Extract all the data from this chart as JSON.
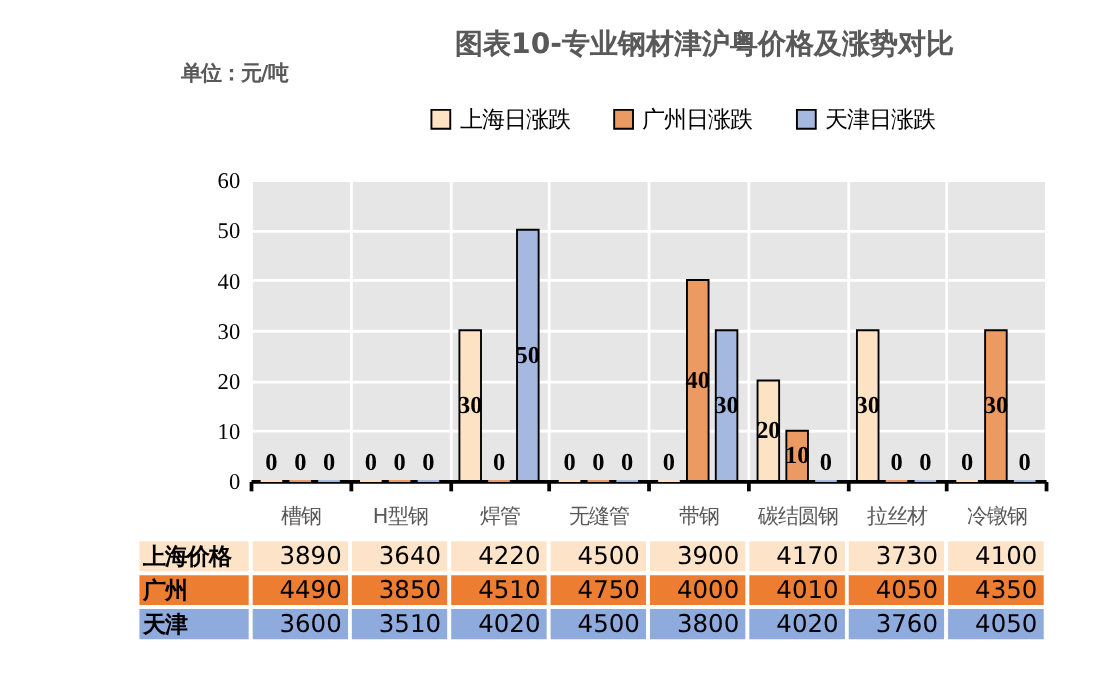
{
  "chart_data": [
    {
      "type": "bar",
      "title": "图表10-专业钢材津沪粤价格及涨势对比",
      "annotations": [
        "单位：元/吨"
      ],
      "categories": [
        "槽钢",
        "H型钢",
        "焊管",
        "无缝管",
        "带钢",
        "碳结圆钢",
        "拉丝材",
        "冷镦钢"
      ],
      "series": [
        {
          "name": "上海日涨跌",
          "color": "#fde3c4",
          "values": [
            0,
            0,
            30,
            0,
            0,
            20,
            30,
            0
          ]
        },
        {
          "name": "广州日涨跌",
          "color": "#eb9a62",
          "values": [
            0,
            0,
            0,
            0,
            40,
            10,
            0,
            30
          ]
        },
        {
          "name": "天津日涨跌",
          "color": "#a5b8e0",
          "values": [
            0,
            0,
            50,
            0,
            30,
            0,
            0,
            0
          ]
        }
      ],
      "ylim": [
        0,
        60
      ],
      "yticks": [
        0,
        10,
        20,
        30,
        40,
        50,
        60
      ],
      "grid": true,
      "legend": "top",
      "data_labels": true
    },
    {
      "type": "heatmap",
      "categories": [
        null,
        null,
        null,
        null,
        null,
        null,
        null,
        null
      ],
      "y_categories": [
        "上海价格",
        "广州",
        "天津"
      ],
      "cells": [
        [
          3890,
          3640,
          4220,
          4500,
          3900,
          4170,
          3730,
          4100
        ],
        [
          4490,
          3850,
          4510,
          4750,
          4000,
          4010,
          4050,
          4350
        ],
        [
          3600,
          3510,
          4020,
          4500,
          3800,
          4020,
          3760,
          4050
        ]
      ],
      "colors": [
        "#fde4c8",
        "#ed7d31",
        "#8faadc"
      ],
      "data_labels": true
    }
  ]
}
